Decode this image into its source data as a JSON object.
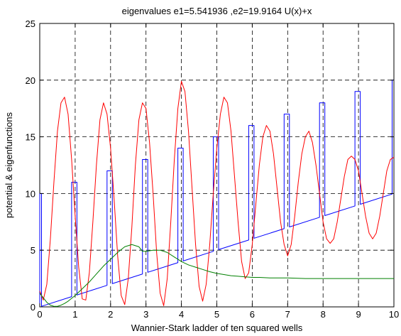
{
  "chart_data": {
    "type": "line",
    "title": "eigenvalues e1=5.541936 ,e2=19.9164 U(x)+x",
    "xlabel": "Wannier-Stark ladder of ten squared wells",
    "ylabel": "potential & eigenfunctions",
    "xlim": [
      0,
      10
    ],
    "ylim": [
      0,
      25
    ],
    "xticks": [
      0,
      1,
      2,
      3,
      4,
      5,
      6,
      7,
      8,
      9,
      10
    ],
    "yticks": [
      0,
      5,
      10,
      15,
      20,
      25
    ],
    "grid": true,
    "series": [
      {
        "color": "#0000ff",
        "x": [
          0,
          0,
          0.05,
          0.05,
          0.05,
          0.9,
          0.9,
          0.9,
          1.05,
          1.05,
          1.05,
          1.9,
          1.9,
          1.9,
          2.05,
          2.05,
          2.05,
          2.9,
          2.9,
          2.9,
          3.05,
          3.05,
          3.05,
          3.9,
          3.9,
          3.9,
          4.05,
          4.05,
          4.05,
          4.9,
          4.9,
          4.9,
          5.05,
          5.05,
          5.05,
          5.9,
          5.9,
          5.9,
          6.05,
          6.05,
          6.05,
          6.9,
          6.9,
          6.9,
          7.05,
          7.05,
          7.05,
          7.9,
          7.9,
          7.9,
          8.05,
          8.05,
          8.05,
          8.9,
          8.9,
          8.9,
          9.05,
          9.05,
          9.05,
          9.95,
          9.95,
          9.95,
          10
        ],
        "y": [
          0,
          10,
          10,
          0.05,
          0.05,
          0.9,
          11,
          11,
          11,
          1.05,
          1.05,
          1.9,
          12,
          12,
          12,
          2.05,
          2.05,
          2.9,
          13,
          13,
          13,
          3.05,
          3.05,
          3.9,
          14,
          14,
          14,
          4.05,
          4.05,
          4.9,
          15,
          15,
          15,
          5.05,
          5.05,
          5.9,
          16,
          16,
          16,
          6.05,
          6.05,
          6.9,
          17,
          17,
          17,
          7.05,
          7.05,
          7.9,
          18,
          18,
          18,
          8.05,
          8.05,
          8.9,
          19,
          19,
          19,
          9.05,
          9.05,
          9.95,
          20,
          20,
          20
        ]
      },
      {
        "color": "#ff0000",
        "x": [
          0,
          0.1,
          0.2,
          0.3,
          0.4,
          0.5,
          0.6,
          0.7,
          0.8,
          0.9,
          1.0,
          1.1,
          1.2,
          1.3,
          1.4,
          1.5,
          1.6,
          1.7,
          1.8,
          1.9,
          2.0,
          2.1,
          2.2,
          2.3,
          2.4,
          2.5,
          2.6,
          2.7,
          2.8,
          2.9,
          3.0,
          3.1,
          3.2,
          3.3,
          3.4,
          3.5,
          3.6,
          3.7,
          3.8,
          3.9,
          4.0,
          4.1,
          4.2,
          4.3,
          4.4,
          4.5,
          4.6,
          4.7,
          4.8,
          4.9,
          5.0,
          5.1,
          5.2,
          5.3,
          5.4,
          5.5,
          5.6,
          5.7,
          5.8,
          5.9,
          6.0,
          6.1,
          6.2,
          6.3,
          6.4,
          6.5,
          6.6,
          6.7,
          6.8,
          6.9,
          7.0,
          7.1,
          7.2,
          7.3,
          7.4,
          7.5,
          7.6,
          7.7,
          7.8,
          7.9,
          8.0,
          8.1,
          8.2,
          8.3,
          8.4,
          8.5,
          8.6,
          8.7,
          8.8,
          8.9,
          9.0,
          9.1,
          9.2,
          9.3,
          9.4,
          9.5,
          9.6,
          9.7,
          9.8,
          9.9,
          10.0
        ],
        "y": [
          1.4,
          0.6,
          2.0,
          6.0,
          11.0,
          15.5,
          18.0,
          18.5,
          17.0,
          13.0,
          8.0,
          3.5,
          0.7,
          0.6,
          3.0,
          7.5,
          12.5,
          16.5,
          18.0,
          17.0,
          14.0,
          9.5,
          4.5,
          1.0,
          0.2,
          2.5,
          7.0,
          12.5,
          16.5,
          18.0,
          17.5,
          14.5,
          10.0,
          4.8,
          1.2,
          0.1,
          2.5,
          7.5,
          13.0,
          17.5,
          19.9,
          19.0,
          15.5,
          10.5,
          5.5,
          1.8,
          0.5,
          2.0,
          5.5,
          10.0,
          14.0,
          17.0,
          18.5,
          18.0,
          15.5,
          11.5,
          7.5,
          4.0,
          2.5,
          3.0,
          5.5,
          9.0,
          12.5,
          15.0,
          16.0,
          15.5,
          13.5,
          10.5,
          7.5,
          5.5,
          4.5,
          5.5,
          8.0,
          11.0,
          13.5,
          15.0,
          15.5,
          14.5,
          12.5,
          10.0,
          7.5,
          6.0,
          5.6,
          6.0,
          7.5,
          9.5,
          11.5,
          13.0,
          13.3,
          13.0,
          12.0,
          10.0,
          8.0,
          6.5,
          6.0,
          6.5,
          8.0,
          10.0,
          12.0,
          13.0,
          13.2
        ]
      },
      {
        "color": "#008000",
        "x": [
          0,
          0.1,
          0.2,
          0.3,
          0.4,
          0.5,
          0.6,
          0.7,
          0.8,
          0.9,
          1.0,
          1.2,
          1.4,
          1.6,
          1.8,
          2.0,
          2.2,
          2.4,
          2.6,
          2.8,
          2.9,
          3.0,
          3.2,
          3.4,
          3.6,
          3.8,
          4.0,
          4.2,
          4.4,
          4.6,
          4.8,
          5.0,
          5.2,
          5.4,
          5.6,
          5.8,
          6.0,
          6.2,
          6.5,
          7.0,
          7.5,
          8.0,
          8.5,
          9.0,
          9.5,
          10.0
        ],
        "y": [
          1.2,
          0.8,
          0.4,
          0.15,
          0.05,
          0.05,
          0.15,
          0.3,
          0.5,
          0.75,
          1.0,
          1.6,
          2.2,
          2.9,
          3.6,
          4.2,
          4.8,
          5.3,
          5.5,
          5.3,
          4.9,
          4.9,
          5.0,
          5.0,
          4.8,
          4.4,
          4.0,
          3.7,
          3.5,
          3.3,
          3.1,
          2.95,
          2.85,
          2.75,
          2.7,
          2.65,
          2.6,
          2.6,
          2.55,
          2.55,
          2.5,
          2.5,
          2.5,
          2.5,
          2.5,
          2.5
        ]
      }
    ]
  }
}
